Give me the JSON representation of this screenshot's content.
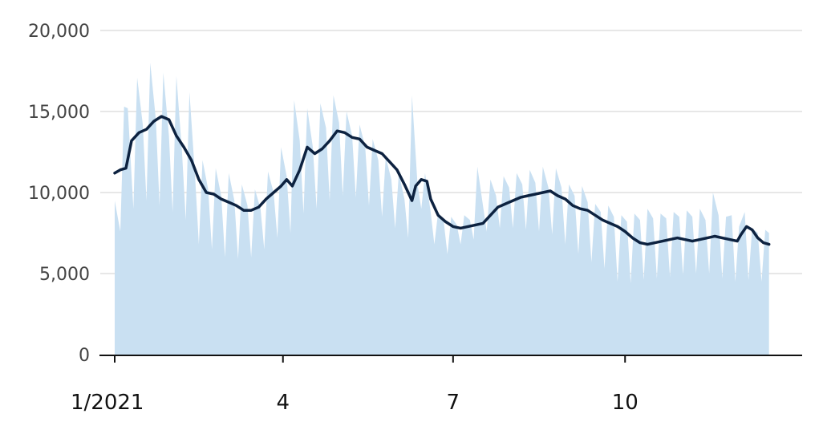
{
  "chart_data": {
    "type": "area",
    "title": "",
    "xlabel": "",
    "ylabel": "",
    "ylim": [
      0,
      20000
    ],
    "yticks": [
      0,
      5000,
      10000,
      15000,
      20000
    ],
    "ytick_labels": [
      "0",
      "5,000",
      "10,000",
      "15,000",
      "20,000"
    ],
    "xticks": [
      {
        "date": "2021-01-01",
        "label": "1/2021"
      },
      {
        "date": "2021-04-01",
        "label": "4"
      },
      {
        "date": "2021-07-01",
        "label": "7"
      },
      {
        "date": "2021-10-01",
        "label": "10"
      }
    ],
    "xlim": [
      "2021-01-01",
      "2021-12-27"
    ],
    "grid": "horizontal",
    "colors": {
      "daily": "#c9e0f2",
      "average": "#0d2240"
    },
    "series": [
      {
        "kind": "daily-area",
        "points": [
          [
            "2021-01-01",
            9500
          ],
          [
            "2021-01-04",
            7600
          ],
          [
            "2021-01-06",
            15300
          ],
          [
            "2021-01-08",
            15200
          ],
          [
            "2021-01-11",
            9000
          ],
          [
            "2021-01-13",
            17100
          ],
          [
            "2021-01-16",
            14200
          ],
          [
            "2021-01-18",
            9500
          ],
          [
            "2021-01-20",
            18000
          ],
          [
            "2021-01-23",
            14500
          ],
          [
            "2021-01-25",
            9200
          ],
          [
            "2021-01-27",
            17400
          ],
          [
            "2021-01-30",
            13500
          ],
          [
            "2021-02-01",
            8800
          ],
          [
            "2021-02-03",
            17200
          ],
          [
            "2021-02-06",
            12500
          ],
          [
            "2021-02-08",
            8300
          ],
          [
            "2021-02-10",
            16200
          ],
          [
            "2021-02-13",
            11000
          ],
          [
            "2021-02-15",
            6800
          ],
          [
            "2021-02-17",
            12000
          ],
          [
            "2021-02-20",
            10200
          ],
          [
            "2021-02-22",
            6500
          ],
          [
            "2021-02-24",
            11500
          ],
          [
            "2021-02-27",
            9800
          ],
          [
            "2021-03-01",
            6000
          ],
          [
            "2021-03-03",
            11200
          ],
          [
            "2021-03-06",
            9500
          ],
          [
            "2021-03-08",
            5900
          ],
          [
            "2021-03-10",
            10500
          ],
          [
            "2021-03-13",
            9200
          ],
          [
            "2021-03-15",
            6000
          ],
          [
            "2021-03-17",
            10200
          ],
          [
            "2021-03-20",
            9000
          ],
          [
            "2021-03-22",
            6500
          ],
          [
            "2021-03-24",
            11300
          ],
          [
            "2021-03-27",
            10000
          ],
          [
            "2021-03-29",
            7200
          ],
          [
            "2021-03-31",
            12800
          ],
          [
            "2021-04-03",
            11000
          ],
          [
            "2021-04-05",
            7500
          ],
          [
            "2021-04-07",
            15700
          ],
          [
            "2021-04-10",
            13200
          ],
          [
            "2021-04-12",
            8700
          ],
          [
            "2021-04-14",
            15200
          ],
          [
            "2021-04-17",
            12800
          ],
          [
            "2021-04-19",
            9000
          ],
          [
            "2021-04-21",
            15500
          ],
          [
            "2021-04-24",
            14000
          ],
          [
            "2021-04-26",
            9500
          ],
          [
            "2021-04-28",
            16000
          ],
          [
            "2021-05-01",
            14300
          ],
          [
            "2021-05-03",
            9800
          ],
          [
            "2021-05-05",
            15000
          ],
          [
            "2021-05-08",
            13500
          ],
          [
            "2021-05-10",
            9700
          ],
          [
            "2021-05-12",
            14200
          ],
          [
            "2021-05-15",
            12800
          ],
          [
            "2021-05-17",
            9200
          ],
          [
            "2021-05-19",
            13300
          ],
          [
            "2021-05-22",
            12000
          ],
          [
            "2021-05-24",
            8500
          ],
          [
            "2021-05-26",
            12200
          ],
          [
            "2021-05-29",
            10800
          ],
          [
            "2021-05-31",
            7800
          ],
          [
            "2021-06-02",
            11200
          ],
          [
            "2021-06-05",
            9600
          ],
          [
            "2021-06-07",
            7200
          ],
          [
            "2021-06-09",
            16000
          ],
          [
            "2021-06-12",
            10500
          ],
          [
            "2021-06-14",
            9000
          ],
          [
            "2021-06-16",
            11200
          ],
          [
            "2021-06-19",
            8800
          ],
          [
            "2021-06-21",
            6800
          ],
          [
            "2021-06-23",
            8800
          ],
          [
            "2021-06-26",
            8200
          ],
          [
            "2021-06-28",
            6200
          ],
          [
            "2021-06-30",
            8500
          ],
          [
            "2021-07-03",
            8000
          ],
          [
            "2021-07-05",
            6800
          ],
          [
            "2021-07-07",
            8600
          ],
          [
            "2021-07-10",
            8300
          ],
          [
            "2021-07-12",
            7100
          ],
          [
            "2021-07-14",
            11600
          ],
          [
            "2021-07-17",
            9200
          ],
          [
            "2021-07-19",
            7600
          ],
          [
            "2021-07-21",
            10800
          ],
          [
            "2021-07-24",
            9800
          ],
          [
            "2021-07-26",
            7800
          ],
          [
            "2021-07-28",
            11000
          ],
          [
            "2021-07-31",
            10300
          ],
          [
            "2021-08-02",
            7800
          ],
          [
            "2021-08-04",
            11200
          ],
          [
            "2021-08-07",
            10500
          ],
          [
            "2021-08-09",
            7700
          ],
          [
            "2021-08-11",
            11400
          ],
          [
            "2021-08-14",
            10600
          ],
          [
            "2021-08-16",
            7600
          ],
          [
            "2021-08-18",
            11600
          ],
          [
            "2021-08-21",
            10300
          ],
          [
            "2021-08-23",
            7400
          ],
          [
            "2021-08-25",
            11500
          ],
          [
            "2021-08-28",
            10300
          ],
          [
            "2021-08-30",
            6800
          ],
          [
            "2021-09-01",
            10500
          ],
          [
            "2021-09-04",
            9800
          ],
          [
            "2021-09-06",
            6200
          ],
          [
            "2021-09-08",
            10400
          ],
          [
            "2021-09-11",
            9400
          ],
          [
            "2021-09-13",
            5700
          ],
          [
            "2021-09-15",
            9300
          ],
          [
            "2021-09-18",
            8800
          ],
          [
            "2021-09-20",
            5300
          ],
          [
            "2021-09-22",
            9200
          ],
          [
            "2021-09-25",
            8500
          ],
          [
            "2021-09-27",
            4500
          ],
          [
            "2021-09-29",
            8600
          ],
          [
            "2021-10-02",
            8200
          ],
          [
            "2021-10-04",
            4400
          ],
          [
            "2021-10-06",
            8700
          ],
          [
            "2021-10-09",
            8300
          ],
          [
            "2021-10-11",
            4600
          ],
          [
            "2021-10-13",
            9000
          ],
          [
            "2021-10-16",
            8400
          ],
          [
            "2021-10-18",
            4700
          ],
          [
            "2021-10-20",
            8700
          ],
          [
            "2021-10-23",
            8400
          ],
          [
            "2021-10-25",
            4800
          ],
          [
            "2021-10-27",
            8800
          ],
          [
            "2021-10-30",
            8500
          ],
          [
            "2021-11-01",
            4900
          ],
          [
            "2021-11-03",
            8900
          ],
          [
            "2021-11-06",
            8500
          ],
          [
            "2021-11-08",
            5000
          ],
          [
            "2021-11-10",
            9000
          ],
          [
            "2021-11-13",
            8300
          ],
          [
            "2021-11-15",
            5000
          ],
          [
            "2021-11-17",
            10000
          ],
          [
            "2021-11-20",
            8600
          ],
          [
            "2021-11-22",
            4700
          ],
          [
            "2021-11-24",
            8500
          ],
          [
            "2021-11-27",
            8600
          ],
          [
            "2021-11-29",
            4500
          ],
          [
            "2021-12-01",
            7900
          ],
          [
            "2021-12-04",
            8800
          ],
          [
            "2021-12-06",
            4600
          ],
          [
            "2021-12-08",
            7800
          ],
          [
            "2021-12-11",
            7500
          ],
          [
            "2021-12-13",
            4500
          ],
          [
            "2021-12-15",
            7700
          ],
          [
            "2021-12-17",
            7500
          ]
        ]
      },
      {
        "kind": "rolling-average-line",
        "points": [
          [
            "2021-01-01",
            11200
          ],
          [
            "2021-01-04",
            11400
          ],
          [
            "2021-01-07",
            11500
          ],
          [
            "2021-01-10",
            13200
          ],
          [
            "2021-01-14",
            13700
          ],
          [
            "2021-01-18",
            13900
          ],
          [
            "2021-01-22",
            14400
          ],
          [
            "2021-01-26",
            14700
          ],
          [
            "2021-01-30",
            14500
          ],
          [
            "2021-02-03",
            13500
          ],
          [
            "2021-02-07",
            12800
          ],
          [
            "2021-02-11",
            12000
          ],
          [
            "2021-02-15",
            10800
          ],
          [
            "2021-02-19",
            10000
          ],
          [
            "2021-02-23",
            9900
          ],
          [
            "2021-02-27",
            9600
          ],
          [
            "2021-03-03",
            9400
          ],
          [
            "2021-03-07",
            9200
          ],
          [
            "2021-03-11",
            8900
          ],
          [
            "2021-03-15",
            8900
          ],
          [
            "2021-03-19",
            9100
          ],
          [
            "2021-03-23",
            9600
          ],
          [
            "2021-03-27",
            10000
          ],
          [
            "2021-03-31",
            10400
          ],
          [
            "2021-04-03",
            10800
          ],
          [
            "2021-04-06",
            10400
          ],
          [
            "2021-04-10",
            11400
          ],
          [
            "2021-04-14",
            12800
          ],
          [
            "2021-04-18",
            12400
          ],
          [
            "2021-04-22",
            12700
          ],
          [
            "2021-04-26",
            13200
          ],
          [
            "2021-04-30",
            13800
          ],
          [
            "2021-05-04",
            13700
          ],
          [
            "2021-05-08",
            13400
          ],
          [
            "2021-05-12",
            13300
          ],
          [
            "2021-05-16",
            12800
          ],
          [
            "2021-05-20",
            12600
          ],
          [
            "2021-05-24",
            12400
          ],
          [
            "2021-05-28",
            11900
          ],
          [
            "2021-06-01",
            11400
          ],
          [
            "2021-06-05",
            10500
          ],
          [
            "2021-06-09",
            9500
          ],
          [
            "2021-06-11",
            10400
          ],
          [
            "2021-06-14",
            10800
          ],
          [
            "2021-06-17",
            10700
          ],
          [
            "2021-06-19",
            9600
          ],
          [
            "2021-06-23",
            8600
          ],
          [
            "2021-06-27",
            8200
          ],
          [
            "2021-07-01",
            7900
          ],
          [
            "2021-07-05",
            7800
          ],
          [
            "2021-07-09",
            7900
          ],
          [
            "2021-07-13",
            8000
          ],
          [
            "2021-07-17",
            8100
          ],
          [
            "2021-07-21",
            8600
          ],
          [
            "2021-07-25",
            9100
          ],
          [
            "2021-07-29",
            9300
          ],
          [
            "2021-08-02",
            9500
          ],
          [
            "2021-08-06",
            9700
          ],
          [
            "2021-08-10",
            9800
          ],
          [
            "2021-08-14",
            9900
          ],
          [
            "2021-08-18",
            10000
          ],
          [
            "2021-08-22",
            10100
          ],
          [
            "2021-08-26",
            9800
          ],
          [
            "2021-08-30",
            9600
          ],
          [
            "2021-09-03",
            9200
          ],
          [
            "2021-09-07",
            9000
          ],
          [
            "2021-09-11",
            8900
          ],
          [
            "2021-09-15",
            8600
          ],
          [
            "2021-09-19",
            8300
          ],
          [
            "2021-09-23",
            8100
          ],
          [
            "2021-09-27",
            7900
          ],
          [
            "2021-10-01",
            7600
          ],
          [
            "2021-10-05",
            7200
          ],
          [
            "2021-10-09",
            6900
          ],
          [
            "2021-10-13",
            6800
          ],
          [
            "2021-10-17",
            6900
          ],
          [
            "2021-10-21",
            7000
          ],
          [
            "2021-10-25",
            7100
          ],
          [
            "2021-10-29",
            7200
          ],
          [
            "2021-11-02",
            7100
          ],
          [
            "2021-11-06",
            7000
          ],
          [
            "2021-11-10",
            7100
          ],
          [
            "2021-11-14",
            7200
          ],
          [
            "2021-11-18",
            7300
          ],
          [
            "2021-11-22",
            7200
          ],
          [
            "2021-11-26",
            7100
          ],
          [
            "2021-11-30",
            7000
          ],
          [
            "2021-12-02",
            7400
          ],
          [
            "2021-12-05",
            7900
          ],
          [
            "2021-12-08",
            7700
          ],
          [
            "2021-12-11",
            7200
          ],
          [
            "2021-12-14",
            6900
          ],
          [
            "2021-12-17",
            6800
          ]
        ]
      }
    ]
  }
}
